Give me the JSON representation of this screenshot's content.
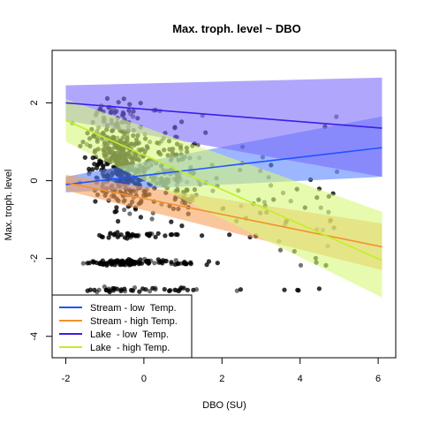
{
  "chart_data": {
    "type": "scatter",
    "title": "Max. troph. level ~ DBO",
    "xlabel": "DBO (SU)",
    "ylabel": "Max. troph. level",
    "xlim": [
      -2.35,
      6.45
    ],
    "ylim": [
      -4.55,
      3.35
    ],
    "x_ticks": [
      -2,
      0,
      2,
      4,
      6
    ],
    "y_ticks": [
      -4,
      -2,
      0,
      2
    ],
    "x_tick_labels": [
      "-2",
      "0",
      "2",
      "4",
      "6"
    ],
    "y_tick_labels": [
      "-4",
      "-2",
      "0",
      "2"
    ],
    "grid": false,
    "legend_position": "bottom-left",
    "point_color": "#000000",
    "points_note_count": 1500,
    "series": [
      {
        "name": "Stream - low  Temp.",
        "color": "#1f55ff",
        "band_color": "#5a86ff",
        "x": [
          -2,
          6.1
        ],
        "y": [
          -0.1,
          0.85
        ],
        "ci_lower": [
          -0.3,
          0.1
        ],
        "ci_upper": [
          0.1,
          1.65
        ]
      },
      {
        "name": "Stream - high Temp.",
        "color": "#f5902a",
        "band_color": "#f7a25c",
        "x": [
          -2,
          6.1
        ],
        "y": [
          -0.05,
          -1.7
        ],
        "ci_lower": [
          -0.25,
          -2.3
        ],
        "ci_upper": [
          0.15,
          -1.1
        ]
      },
      {
        "name": "Lake  - low  Temp.",
        "color": "#3c1ee6",
        "band_color": "#7c6cfa",
        "x": [
          -2,
          6.1
        ],
        "y": [
          2.0,
          1.35
        ],
        "ci_lower": [
          1.55,
          0.1
        ],
        "ci_upper": [
          2.45,
          2.65
        ]
      },
      {
        "name": "Lake  - high Temp.",
        "color": "#c4ee28",
        "band_color": "#d7f97a",
        "x": [
          -2,
          6.1
        ],
        "y": [
          1.55,
          -2.05
        ],
        "ci_lower": [
          1.0,
          -3.0
        ],
        "ci_upper": [
          2.1,
          -0.8
        ]
      }
    ]
  }
}
